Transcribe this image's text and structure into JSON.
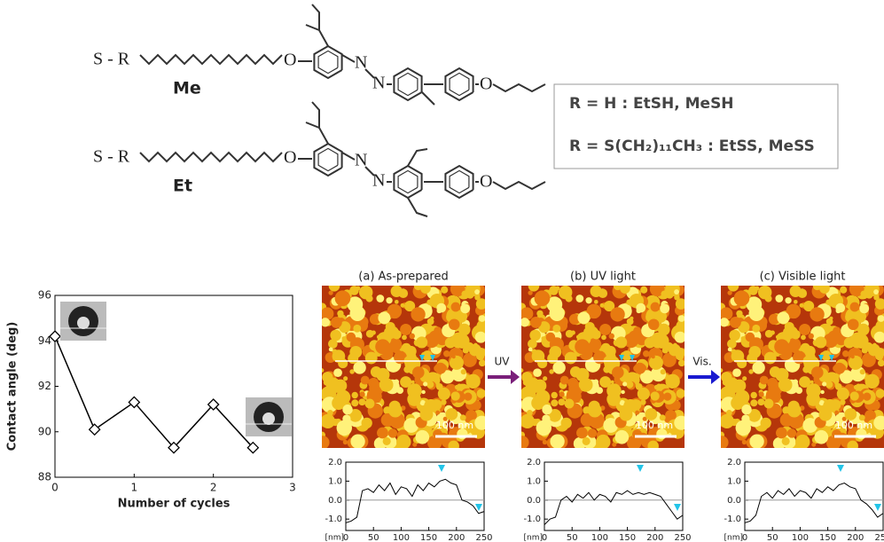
{
  "structures": [
    {
      "substituent": "S - R",
      "label": "Me",
      "atoms": [
        "O",
        "N",
        "N",
        "O"
      ]
    },
    {
      "substituent": "S - R",
      "label": "Et",
      "atoms": [
        "O",
        "N",
        "N",
        "O"
      ]
    }
  ],
  "definitions": [
    "R = H : EtSH, MeSH",
    "R = S(CH₂)₁₁CH₃ : EtSS, MeSS"
  ],
  "afm": {
    "panels": [
      "(a) As-prepared",
      "(b) UV light",
      "(c) Visible light"
    ],
    "scale_bar": "100 nm",
    "arrows": [
      "UV",
      "Vis."
    ]
  },
  "chart_data": [
    {
      "type": "line",
      "xlabel": "Number of cycles",
      "ylabel": "Contact angle (deg)",
      "x": [
        0,
        0.5,
        1,
        1.5,
        2,
        2.5
      ],
      "values": [
        94.2,
        90.1,
        91.3,
        89.3,
        91.2,
        89.3
      ],
      "xlim": [
        0,
        3
      ],
      "xticks": [
        0,
        1,
        2,
        3
      ],
      "ylim": [
        88,
        96
      ],
      "yticks": [
        88,
        90,
        92,
        94,
        96
      ],
      "marker": "diamond",
      "color": "#000000"
    },
    {
      "type": "line",
      "xlabel": "[nm]",
      "x": [
        0,
        10,
        20,
        30,
        40,
        50,
        60,
        70,
        80,
        90,
        100,
        110,
        120,
        130,
        140,
        150,
        160,
        170,
        180,
        190,
        200,
        210,
        220,
        230,
        240,
        250
      ],
      "values": [
        -1.2,
        -1.1,
        -0.9,
        0.5,
        0.6,
        0.4,
        0.8,
        0.5,
        0.9,
        0.3,
        0.7,
        0.6,
        0.2,
        0.8,
        0.5,
        0.9,
        0.7,
        1.0,
        1.1,
        0.9,
        0.8,
        0.0,
        -0.1,
        -0.3,
        -0.7,
        -0.6
      ],
      "xlim": [
        0,
        250
      ],
      "xticks": [
        0,
        50,
        100,
        150,
        200,
        250
      ],
      "ylim": [
        -1.6,
        2.0
      ],
      "yticks": [
        {
          "value": 2,
          "label": "2.0"
        },
        {
          "value": 1,
          "label": "1.0"
        },
        {
          "value": 0,
          "label": "0.0"
        },
        {
          "value": -1,
          "label": "-1.0"
        }
      ],
      "baseline": 0,
      "color": "#000000"
    },
    {
      "type": "line",
      "xlabel": "[nm]",
      "x": [
        0,
        10,
        20,
        30,
        40,
        50,
        60,
        70,
        80,
        90,
        100,
        110,
        120,
        130,
        140,
        150,
        160,
        170,
        180,
        190,
        200,
        210,
        220,
        230,
        240,
        250
      ],
      "values": [
        -1.3,
        -1.0,
        -0.9,
        0.0,
        0.2,
        -0.1,
        0.3,
        0.1,
        0.4,
        0.0,
        0.3,
        0.2,
        -0.1,
        0.4,
        0.3,
        0.5,
        0.3,
        0.4,
        0.3,
        0.4,
        0.3,
        0.2,
        -0.2,
        -0.6,
        -1.0,
        -0.8
      ],
      "xlim": [
        0,
        250
      ],
      "xticks": [
        0,
        50,
        100,
        150,
        200,
        250
      ],
      "ylim": [
        -1.6,
        2.0
      ],
      "yticks": [
        {
          "value": 2,
          "label": "2.0"
        },
        {
          "value": 1,
          "label": "1.0"
        },
        {
          "value": 0,
          "label": "0.0"
        },
        {
          "value": -1,
          "label": "-1.0"
        }
      ],
      "baseline": 0,
      "color": "#000000"
    },
    {
      "type": "line",
      "xlabel": "[nm]",
      "x": [
        0,
        10,
        20,
        30,
        40,
        50,
        60,
        70,
        80,
        90,
        100,
        110,
        120,
        130,
        140,
        150,
        160,
        170,
        180,
        190,
        200,
        210,
        220,
        230,
        240,
        250
      ],
      "values": [
        -1.2,
        -1.1,
        -0.8,
        0.2,
        0.4,
        0.1,
        0.5,
        0.3,
        0.6,
        0.2,
        0.5,
        0.4,
        0.1,
        0.6,
        0.4,
        0.7,
        0.5,
        0.8,
        0.9,
        0.7,
        0.6,
        0.0,
        -0.2,
        -0.5,
        -0.9,
        -0.7
      ],
      "xlim": [
        0,
        250
      ],
      "xticks": [
        0,
        50,
        100,
        150,
        200,
        250
      ],
      "ylim": [
        -1.6,
        2.0
      ],
      "yticks": [
        {
          "value": 2,
          "label": "2.0"
        },
        {
          "value": 1,
          "label": "1.0"
        },
        {
          "value": 0,
          "label": "0.0"
        },
        {
          "value": -1,
          "label": "-1.0"
        }
      ],
      "baseline": 0,
      "color": "#000000"
    }
  ]
}
